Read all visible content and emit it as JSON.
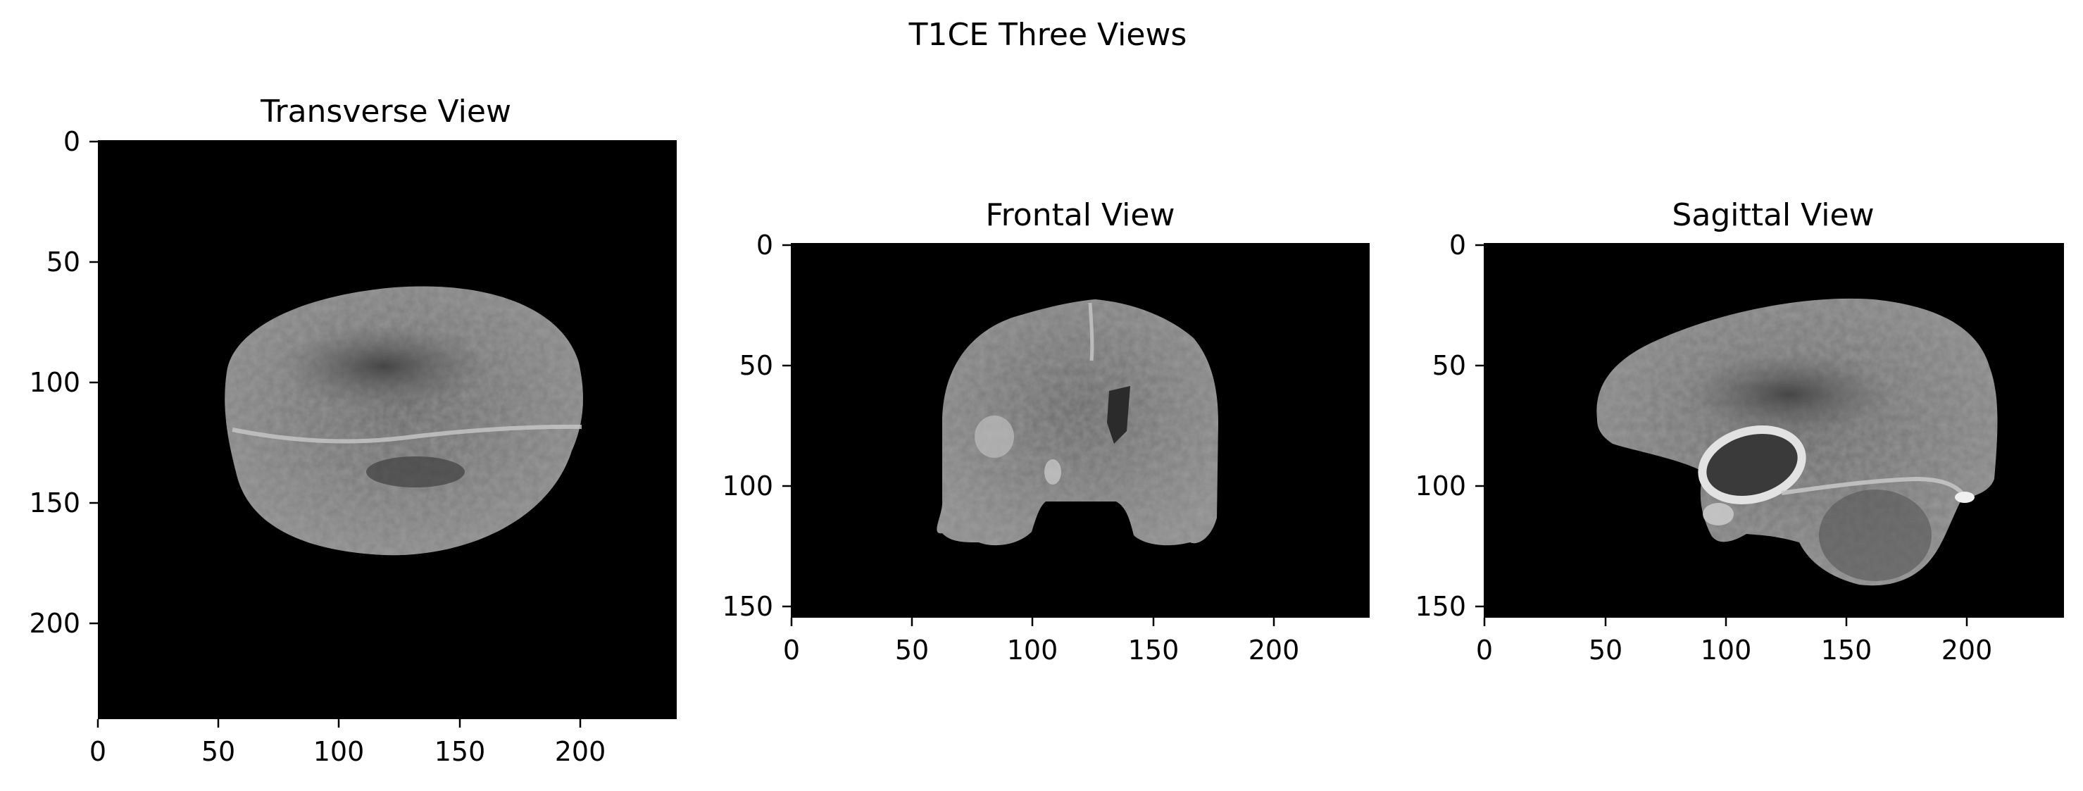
{
  "figure": {
    "title": "T1CE Three Views"
  },
  "panels": [
    {
      "title": "Transverse View",
      "image": "axial brain MRI slice, grayscale",
      "x_ticks": [
        "0",
        "50",
        "100",
        "150",
        "200"
      ],
      "y_ticks": [
        "0",
        "50",
        "100",
        "150",
        "200"
      ]
    },
    {
      "title": "Frontal View",
      "image": "coronal brain MRI slice, grayscale",
      "x_ticks": [
        "0",
        "50",
        "100",
        "150",
        "200"
      ],
      "y_ticks": [
        "0",
        "50",
        "100",
        "150"
      ]
    },
    {
      "title": "Sagittal View",
      "image": "sagittal brain MRI slice with enhancing ring lesion, grayscale",
      "x_ticks": [
        "0",
        "50",
        "100",
        "150",
        "200"
      ],
      "y_ticks": [
        "0",
        "50",
        "100",
        "150"
      ]
    }
  ]
}
